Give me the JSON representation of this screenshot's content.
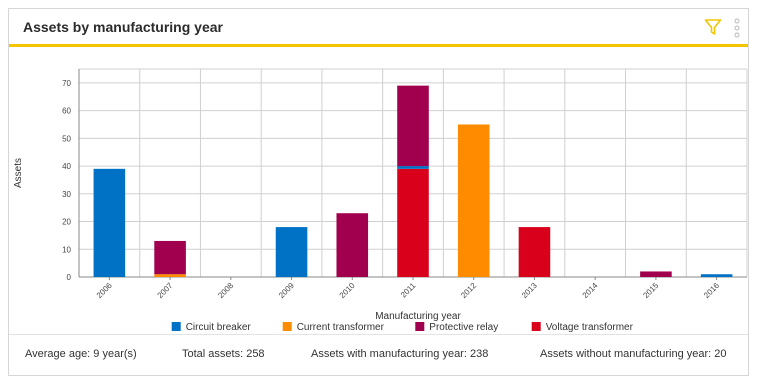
{
  "header": {
    "title": "Assets by manufacturing year",
    "filter_icon": "filter-icon",
    "more_icon": "more-vertical-icon",
    "accent_color": "#f2c500"
  },
  "chart_data": {
    "type": "bar",
    "stacked": true,
    "categories": [
      "2006",
      "2007",
      "2008",
      "2009",
      "2010",
      "2011",
      "2012",
      "2013",
      "2014",
      "2015",
      "2016"
    ],
    "series": [
      {
        "name": "Circuit breaker",
        "color": "#0072c6",
        "values": [
          39,
          0,
          0,
          18,
          0,
          1,
          0,
          0,
          0,
          0,
          1
        ]
      },
      {
        "name": "Current transformer",
        "color": "#ff8c00",
        "values": [
          0,
          1,
          0,
          0,
          0,
          0,
          55,
          0,
          0,
          0,
          0
        ]
      },
      {
        "name": "Protective relay",
        "color": "#a0004e",
        "values": [
          0,
          12,
          0,
          0,
          23,
          29,
          0,
          0,
          0,
          2,
          0
        ]
      },
      {
        "name": "Voltage transformer",
        "color": "#d9001b",
        "values": [
          0,
          0,
          0,
          0,
          0,
          39,
          0,
          18,
          0,
          0,
          0
        ]
      }
    ],
    "stack_order": [
      3,
      0,
      1,
      2
    ],
    "xlabel": "Manufacturing year",
    "ylabel": "Assets",
    "ylim": [
      0,
      75
    ],
    "yticks": [
      0,
      10,
      20,
      30,
      40,
      50,
      60,
      70
    ],
    "grid": true,
    "legend_position": "bottom"
  },
  "footer": {
    "average_age": "Average age: 9 year(s)",
    "total_assets": "Total assets: 258",
    "with_year": "Assets with manufacturing year: 238",
    "without_year": "Assets without manufacturing year: 20"
  }
}
